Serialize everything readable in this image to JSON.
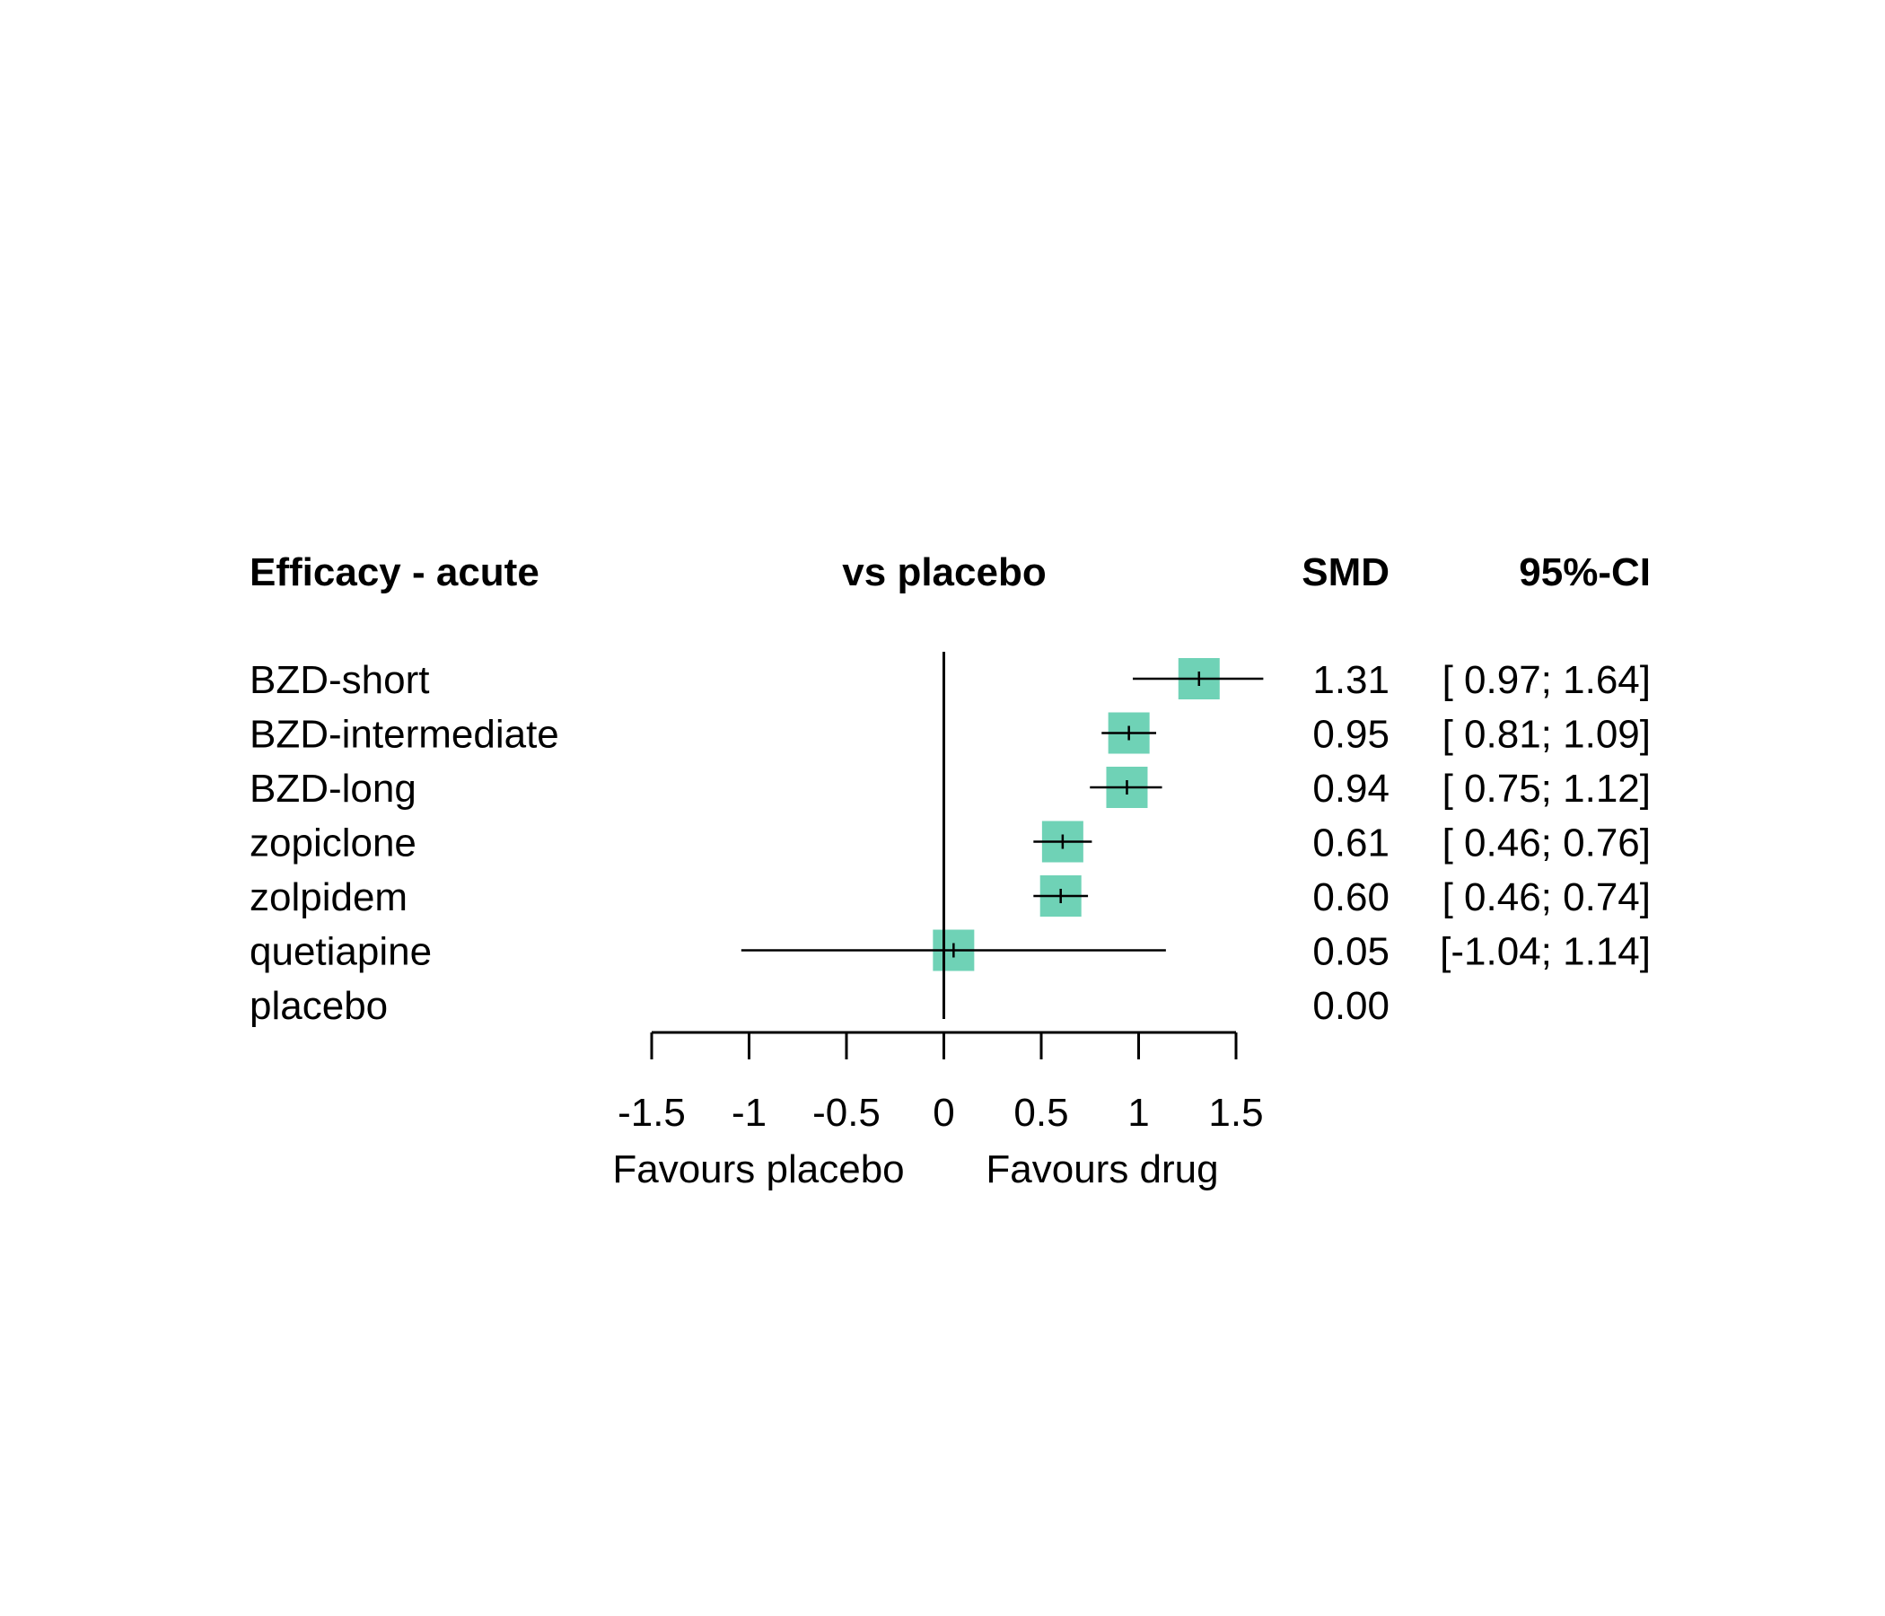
{
  "headers": {
    "outcome": "Efficacy - acute",
    "comparison": "vs placebo",
    "effect": "SMD",
    "ci": "95%-CI"
  },
  "favours": {
    "left": "Favours placebo",
    "right": "Favours drug"
  },
  "colors": {
    "box": "#6fd2b6",
    "line": "#000000"
  },
  "chart_data": {
    "type": "forest",
    "xlim": [
      -1.5,
      1.5
    ],
    "ticks": [
      -1.5,
      -1,
      -0.5,
      0,
      0.5,
      1,
      1.5
    ],
    "tick_labels": [
      "-1.5",
      "-1",
      "-0.5",
      "0",
      "0.5",
      "1",
      "1.5"
    ],
    "reference_line": 0,
    "rows": [
      {
        "label": "BZD-short",
        "est": 1.31,
        "lo": 0.97,
        "hi": 1.64,
        "est_text": "1.31",
        "ci_text": "[ 0.97; 1.64]"
      },
      {
        "label": "BZD-intermediate",
        "est": 0.95,
        "lo": 0.81,
        "hi": 1.09,
        "est_text": "0.95",
        "ci_text": "[ 0.81; 1.09]"
      },
      {
        "label": "BZD-long",
        "est": 0.94,
        "lo": 0.75,
        "hi": 1.12,
        "est_text": "0.94",
        "ci_text": "[ 0.75; 1.12]"
      },
      {
        "label": "zopiclone",
        "est": 0.61,
        "lo": 0.46,
        "hi": 0.76,
        "est_text": "0.61",
        "ci_text": "[ 0.46; 0.76]"
      },
      {
        "label": "zolpidem",
        "est": 0.6,
        "lo": 0.46,
        "hi": 0.74,
        "est_text": "0.60",
        "ci_text": "[ 0.46; 0.74]"
      },
      {
        "label": "quetiapine",
        "est": 0.05,
        "lo": -1.04,
        "hi": 1.14,
        "est_text": "0.05",
        "ci_text": "[-1.04; 1.14]"
      },
      {
        "label": "placebo",
        "est": 0.0,
        "lo": null,
        "hi": null,
        "est_text": "0.00",
        "ci_text": ""
      }
    ]
  }
}
